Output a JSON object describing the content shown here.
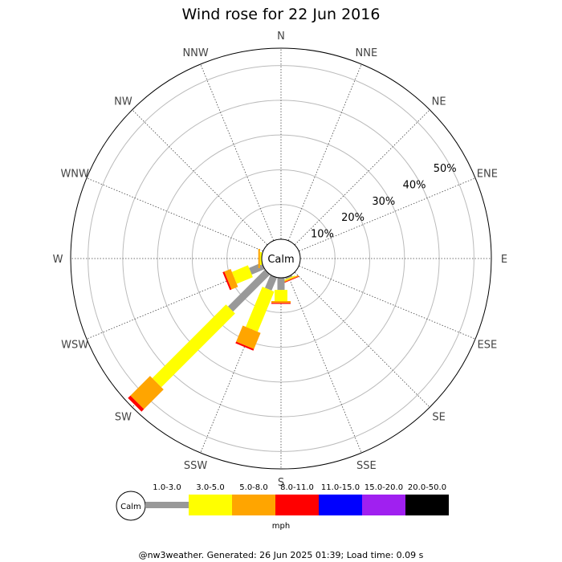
{
  "chart_data": {
    "type": "wind-rose",
    "title": "Wind rose for 22 Jun 2016",
    "directions": [
      "N",
      "NNE",
      "NE",
      "ENE",
      "E",
      "ESE",
      "SE",
      "SSE",
      "S",
      "SSW",
      "SW",
      "WSW",
      "W",
      "WNW",
      "NW",
      "NNW"
    ],
    "radial_ticks": [
      "10%",
      "20%",
      "30%",
      "40%",
      "50%"
    ],
    "radial_values": [
      10,
      20,
      30,
      40,
      50
    ],
    "rmax": 55,
    "calm_label": "Calm",
    "unit": "mph",
    "speed_bins": [
      {
        "range": "1.0-3.0",
        "color": "#999999"
      },
      {
        "range": "3.0-5.0",
        "color": "#ffff00"
      },
      {
        "range": "5.0-8.0",
        "color": "#ffa500"
      },
      {
        "range": "8.0-11.0",
        "color": "#ff0000"
      },
      {
        "range": "11.0-15.0",
        "color": "#0000ff"
      },
      {
        "range": "15.0-20.0",
        "color": "#a020f0"
      },
      {
        "range": "20.0-50.0",
        "color": "#000000"
      }
    ],
    "series": [
      {
        "direction": "SSE",
        "values": [
          0.5,
          0.3,
          0.3,
          0.2,
          0,
          0,
          0
        ]
      },
      {
        "direction": "S",
        "values": [
          3.5,
          3.2,
          0.5,
          0.3,
          0,
          0,
          0
        ]
      },
      {
        "direction": "SSW",
        "values": [
          4.0,
          12.5,
          5.0,
          0.5,
          0,
          0,
          0
        ]
      },
      {
        "direction": "SW",
        "values": [
          15.0,
          30.0,
          8.0,
          1.0,
          0,
          0,
          0
        ]
      },
      {
        "direction": "WSW",
        "values": [
          4.0,
          5.0,
          2.0,
          0.5,
          0,
          0,
          0
        ]
      },
      {
        "direction": "W",
        "values": [
          0.0,
          0.5,
          0.5,
          0.0,
          0,
          0,
          0
        ]
      }
    ]
  },
  "footer": "@nw3weather. Generated: 26 Jun 2025 01:39; Load time: 0.09 s"
}
